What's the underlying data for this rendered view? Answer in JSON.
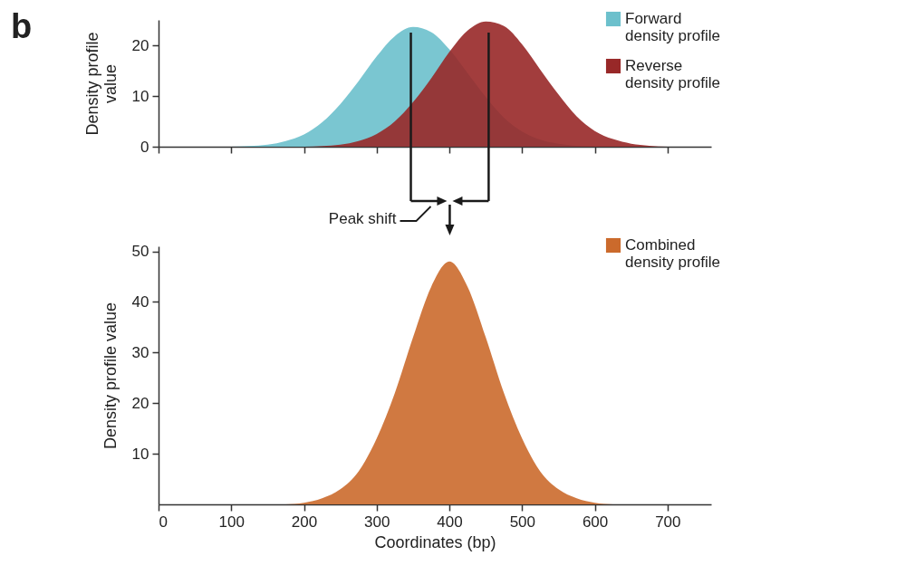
{
  "chart_data": [
    {
      "type": "area",
      "ylabel": "Density profile value",
      "annotations": [
        "b"
      ],
      "xlim": [
        0,
        760
      ],
      "xticks": [
        0,
        100,
        200,
        300,
        400,
        500,
        600,
        700
      ],
      "ylim": [
        0,
        25
      ],
      "yticks": [
        0,
        10,
        20
      ],
      "tick_labels": "y",
      "legend": "top right",
      "series": [
        {
          "name": "Forward density profile",
          "color": "#6cc0cc",
          "x": [
            100,
            150,
            175,
            200,
            225,
            250,
            275,
            300,
            325,
            350,
            375,
            400,
            425,
            450,
            475,
            500,
            525,
            550,
            575,
            600
          ],
          "values": [
            0,
            0.4,
            1.1,
            2.4,
            4.8,
            8.4,
            12.9,
            17.8,
            21.8,
            23.6,
            22.6,
            19.2,
            14.5,
            9.8,
            5.7,
            3,
            1.4,
            0.6,
            0.2,
            0
          ]
        },
        {
          "name": "Reverse density profile",
          "color": "#982828",
          "x": [
            200,
            250,
            275,
            300,
            325,
            350,
            375,
            400,
            425,
            450,
            475,
            500,
            525,
            550,
            575,
            600,
            625,
            650,
            675,
            700
          ],
          "values": [
            0,
            0.4,
            1.1,
            2.5,
            5,
            8.8,
            13.5,
            18.7,
            22.9,
            24.7,
            23.8,
            20.2,
            15.2,
            10.3,
            6,
            3.1,
            1.5,
            0.6,
            0.2,
            0
          ]
        }
      ],
      "ref_lines": [
        {
          "axis": "x",
          "value": 347,
          "color": "#1a1a1a"
        },
        {
          "axis": "x",
          "value": 454,
          "color": "#1a1a1a"
        }
      ]
    },
    {
      "type": "area",
      "ylabel": "Density profile value",
      "xlabel": "Coordinates (bp)",
      "annotations": [
        "Peak shift"
      ],
      "xlim": [
        0,
        760
      ],
      "xticks": [
        0,
        100,
        200,
        300,
        400,
        500,
        600,
        700
      ],
      "ylim": [
        0,
        51
      ],
      "yticks": [
        10,
        20,
        30,
        40,
        50
      ],
      "legend": "top right",
      "series": [
        {
          "name": "Combined density profile",
          "color": "#cb6a2c",
          "x": [
            175,
            200,
            225,
            250,
            275,
            300,
            325,
            350,
            375,
            400,
            425,
            450,
            475,
            500,
            525,
            550,
            575,
            600,
            625
          ],
          "values": [
            0,
            0.3,
            1.2,
            3,
            6.5,
            13,
            22,
            33,
            43,
            48,
            43,
            33,
            22,
            13,
            6.5,
            3,
            1.2,
            0.3,
            0
          ]
        }
      ]
    }
  ]
}
